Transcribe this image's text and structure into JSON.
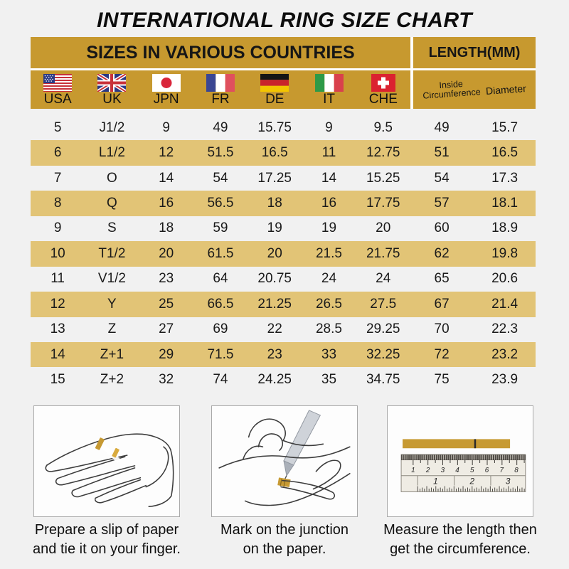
{
  "title": "INTERNATIONAL RING SIZE CHART",
  "table": {
    "sizes_group_label": "SIZES IN VARIOUS COUNTRIES",
    "length_group_label": "LENGTH(MM)",
    "countries": [
      "USA",
      "UK",
      "JPN",
      "FR",
      "DE",
      "IT",
      "CHE"
    ],
    "flag_icons": [
      "usa-flag",
      "uk-flag",
      "japan-flag",
      "france-flag",
      "germany-flag",
      "italy-flag",
      "switzerland-flag"
    ],
    "length_columns": {
      "inside_line1": "Inside",
      "inside_line2": "Circumference",
      "diameter": "Diameter"
    }
  },
  "chart_data": {
    "type": "table",
    "title": "INTERNATIONAL RING SIZE CHART",
    "group_headers": [
      "SIZES IN VARIOUS COUNTRIES",
      "LENGTH(MM)"
    ],
    "columns": [
      "USA",
      "UK",
      "JPN",
      "FR",
      "DE",
      "IT",
      "CHE",
      "Inside Circumference",
      "Diameter"
    ],
    "rows": [
      [
        "5",
        "J1/2",
        "9",
        "49",
        "15.75",
        "9",
        "9.5",
        "49",
        "15.7"
      ],
      [
        "6",
        "L1/2",
        "12",
        "51.5",
        "16.5",
        "11",
        "12.75",
        "51",
        "16.5"
      ],
      [
        "7",
        "O",
        "14",
        "54",
        "17.25",
        "14",
        "15.25",
        "54",
        "17.3"
      ],
      [
        "8",
        "Q",
        "16",
        "56.5",
        "18",
        "16",
        "17.75",
        "57",
        "18.1"
      ],
      [
        "9",
        "S",
        "18",
        "59",
        "19",
        "19",
        "20",
        "60",
        "18.9"
      ],
      [
        "10",
        "T1/2",
        "20",
        "61.5",
        "20",
        "21.5",
        "21.75",
        "62",
        "19.8"
      ],
      [
        "11",
        "V1/2",
        "23",
        "64",
        "20.75",
        "24",
        "24",
        "65",
        "20.6"
      ],
      [
        "12",
        "Y",
        "25",
        "66.5",
        "21.25",
        "26.5",
        "27.5",
        "67",
        "21.4"
      ],
      [
        "13",
        "Z",
        "27",
        "69",
        "22",
        "28.5",
        "29.25",
        "70",
        "22.3"
      ],
      [
        "14",
        "Z+1",
        "29",
        "71.5",
        "23",
        "33",
        "32.25",
        "72",
        "23.2"
      ],
      [
        "15",
        "Z+2",
        "32",
        "74",
        "24.25",
        "35",
        "34.75",
        "75",
        "23.9"
      ]
    ]
  },
  "instructions": [
    {
      "line1": "Prepare a slip of paper",
      "line2": "and tie it on your finger."
    },
    {
      "line1": "Mark on the junction",
      "line2": "on the paper."
    },
    {
      "line1": "Measure the length then",
      "line2": "get the circumference."
    }
  ],
  "ruler": {
    "cm": [
      "1",
      "2",
      "3",
      "4",
      "5",
      "6",
      "7",
      "8"
    ],
    "inch": [
      "1",
      "2",
      "3"
    ]
  },
  "colors": {
    "gold_header": "#c7992f",
    "row_highlight": "#e2c476",
    "background": "#f1f1f1",
    "strip_gold": "#c79a33"
  }
}
